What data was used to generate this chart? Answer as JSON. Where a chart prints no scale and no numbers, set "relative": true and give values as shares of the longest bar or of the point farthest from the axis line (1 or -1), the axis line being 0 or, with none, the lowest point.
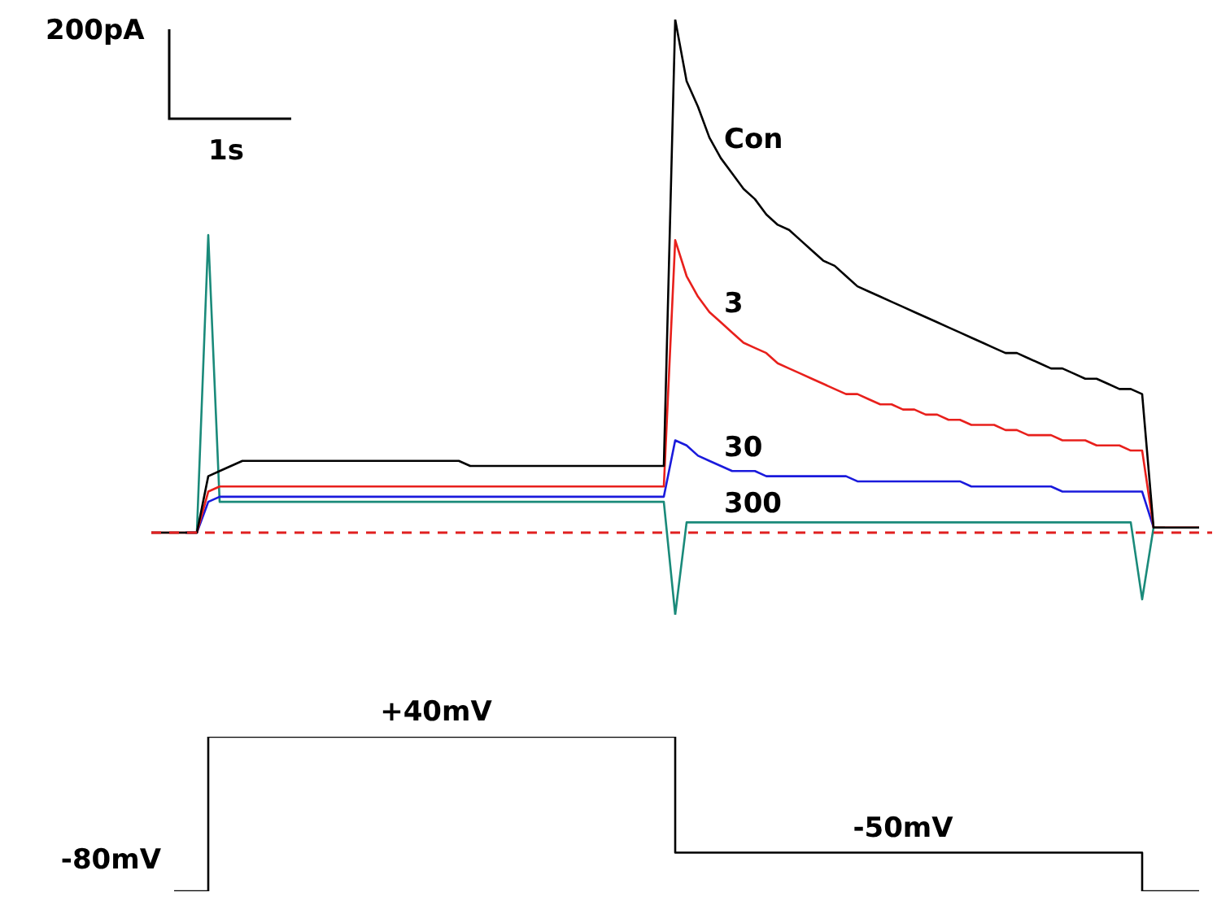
{
  "chart_data": [
    {
      "type": "line",
      "relative": true,
      "annotations": [
        "200pA",
        "1s"
      ],
      "categories": [
        null,
        null,
        null,
        null,
        null,
        null,
        null,
        null,
        null,
        null,
        null,
        null,
        null,
        null,
        null,
        null,
        null,
        null,
        null,
        null,
        null,
        null,
        null,
        null,
        null,
        null,
        null,
        null,
        null,
        null,
        null,
        null,
        null,
        null,
        null,
        null,
        null,
        null,
        null,
        null,
        null,
        null,
        null,
        null,
        null,
        null,
        null,
        null,
        null,
        null,
        null,
        null,
        null,
        null,
        null,
        null,
        null,
        null,
        null,
        null,
        null,
        null,
        null,
        null,
        null,
        null,
        null,
        null,
        null,
        null,
        null,
        null,
        null,
        null,
        null,
        null,
        null,
        null,
        null,
        null,
        null,
        null,
        null,
        null,
        null,
        null,
        null,
        null,
        null,
        null,
        null,
        null,
        null
      ],
      "series": [
        {
          "name": "Con",
          "color": "#000000",
          "values": [
            0,
            0,
            0,
            0,
            0,
            0.11,
            0.12,
            0.13,
            0.14,
            0.14,
            0.14,
            0.14,
            0.14,
            0.14,
            0.14,
            0.14,
            0.14,
            0.14,
            0.14,
            0.14,
            0.14,
            0.14,
            0.14,
            0.14,
            0.14,
            0.14,
            0.14,
            0.14,
            0.13,
            0.13,
            0.13,
            0.13,
            0.13,
            0.13,
            0.13,
            0.13,
            0.13,
            0.13,
            0.13,
            0.13,
            0.13,
            0.13,
            0.13,
            0.13,
            0.13,
            0.13,
            1,
            0.88,
            0.83,
            0.77,
            0.73,
            0.7,
            0.67,
            0.65,
            0.62,
            0.6,
            0.59,
            0.57,
            0.55,
            0.53,
            0.52,
            0.5,
            0.48,
            0.47,
            0.46,
            0.45,
            0.44,
            0.43,
            0.42,
            0.41,
            0.4,
            0.39,
            0.38,
            0.37,
            0.36,
            0.35,
            0.35,
            0.34,
            0.33,
            0.32,
            0.32,
            0.31,
            0.3,
            0.3,
            0.29,
            0.28,
            0.28,
            0.27,
            0.01,
            0.01,
            0.01,
            0.01,
            0.01
          ]
        },
        {
          "name": "3",
          "color": "#e8201c",
          "values": [
            0,
            0,
            0,
            0,
            0,
            0.08,
            0.09,
            0.09,
            0.09,
            0.09,
            0.09,
            0.09,
            0.09,
            0.09,
            0.09,
            0.09,
            0.09,
            0.09,
            0.09,
            0.09,
            0.09,
            0.09,
            0.09,
            0.09,
            0.09,
            0.09,
            0.09,
            0.09,
            0.09,
            0.09,
            0.09,
            0.09,
            0.09,
            0.09,
            0.09,
            0.09,
            0.09,
            0.09,
            0.09,
            0.09,
            0.09,
            0.09,
            0.09,
            0.09,
            0.09,
            0.09,
            0.57,
            0.5,
            0.46,
            0.43,
            0.41,
            0.39,
            0.37,
            0.36,
            0.35,
            0.33,
            0.32,
            0.31,
            0.3,
            0.29,
            0.28,
            0.27,
            0.27,
            0.26,
            0.25,
            0.25,
            0.24,
            0.24,
            0.23,
            0.23,
            0.22,
            0.22,
            0.21,
            0.21,
            0.21,
            0.2,
            0.2,
            0.19,
            0.19,
            0.19,
            0.18,
            0.18,
            0.18,
            0.17,
            0.17,
            0.17,
            0.16,
            0.16,
            0.01,
            0.01,
            0.01,
            0.01,
            0.01
          ]
        },
        {
          "name": "30",
          "color": "#1a1adc",
          "values": [
            null,
            null,
            null,
            0,
            0,
            0.06,
            0.07,
            0.07,
            0.07,
            0.07,
            0.07,
            0.07,
            0.07,
            0.07,
            0.07,
            0.07,
            0.07,
            0.07,
            0.07,
            0.07,
            0.07,
            0.07,
            0.07,
            0.07,
            0.07,
            0.07,
            0.07,
            0.07,
            0.07,
            0.07,
            0.07,
            0.07,
            0.07,
            0.07,
            0.07,
            0.07,
            0.07,
            0.07,
            0.07,
            0.07,
            0.07,
            0.07,
            0.07,
            0.07,
            0.07,
            0.07,
            0.18,
            0.17,
            0.15,
            0.14,
            0.13,
            0.12,
            0.12,
            0.12,
            0.11,
            0.11,
            0.11,
            0.11,
            0.11,
            0.11,
            0.11,
            0.11,
            0.1,
            0.1,
            0.1,
            0.1,
            0.1,
            0.1,
            0.1,
            0.1,
            0.1,
            0.1,
            0.09,
            0.09,
            0.09,
            0.09,
            0.09,
            0.09,
            0.09,
            0.09,
            0.08,
            0.08,
            0.08,
            0.08,
            0.08,
            0.08,
            0.08,
            0.08,
            0.01,
            null,
            null,
            null,
            null
          ]
        },
        {
          "name": "300",
          "color": "#1a8a7a",
          "values": [
            null,
            null,
            null,
            0,
            0,
            0.58,
            0.06,
            0.06,
            0.06,
            0.06,
            0.06,
            0.06,
            0.06,
            0.06,
            0.06,
            0.06,
            0.06,
            0.06,
            0.06,
            0.06,
            0.06,
            0.06,
            0.06,
            0.06,
            0.06,
            0.06,
            0.06,
            0.06,
            0.06,
            0.06,
            0.06,
            0.06,
            0.06,
            0.06,
            0.06,
            0.06,
            0.06,
            0.06,
            0.06,
            0.06,
            0.06,
            0.06,
            0.06,
            0.06,
            0.06,
            0.06,
            -0.16,
            0.02,
            0.02,
            0.02,
            0.02,
            0.02,
            0.02,
            0.02,
            0.02,
            0.02,
            0.02,
            0.02,
            0.02,
            0.02,
            0.02,
            0.02,
            0.02,
            0.02,
            0.02,
            0.02,
            0.02,
            0.02,
            0.02,
            0.02,
            0.02,
            0.02,
            0.02,
            0.02,
            0.02,
            0.02,
            0.02,
            0.02,
            0.02,
            0.02,
            0.02,
            0.02,
            0.02,
            0.02,
            0.02,
            0.02,
            0.02,
            -0.13,
            0.01,
            0.01,
            null,
            null,
            null
          ]
        }
      ],
      "ref_lines": [
        {
          "axis": "y",
          "value": 0,
          "color": "#e02020",
          "line_style": "dashed"
        }
      ]
    },
    {
      "type": "step",
      "color": "#000000",
      "categories": [
        null,
        null,
        null,
        null,
        null,
        null,
        null,
        null,
        null,
        null,
        null,
        null,
        null,
        null,
        null,
        null,
        null,
        null,
        null,
        null,
        null,
        null,
        null,
        null,
        null,
        null,
        null,
        null,
        null,
        null,
        null,
        null,
        null,
        null,
        null,
        null,
        null,
        null,
        null,
        null,
        null,
        null,
        null,
        null,
        null,
        null,
        null,
        null,
        null,
        null,
        null,
        null,
        null,
        null,
        null,
        null,
        null,
        null,
        null,
        null,
        null,
        null,
        null,
        null,
        null,
        null,
        null,
        null,
        null,
        null,
        null,
        null,
        null,
        null,
        null,
        null,
        null,
        null,
        null,
        null,
        null,
        null,
        null,
        null,
        null,
        null,
        null,
        null,
        null,
        null,
        null,
        null,
        null
      ],
      "values": [
        null,
        null,
        -80,
        -80,
        -80,
        40,
        40,
        40,
        40,
        40,
        40,
        40,
        40,
        40,
        40,
        40,
        40,
        40,
        40,
        40,
        40,
        40,
        40,
        40,
        40,
        40,
        40,
        40,
        40,
        40,
        40,
        40,
        40,
        40,
        40,
        40,
        40,
        40,
        40,
        40,
        40,
        40,
        40,
        40,
        40,
        40,
        -50,
        -50,
        -50,
        -50,
        -50,
        -50,
        -50,
        -50,
        -50,
        -50,
        -50,
        -50,
        -50,
        -50,
        -50,
        -50,
        -50,
        -50,
        -50,
        -50,
        -50,
        -50,
        -50,
        -50,
        -50,
        -50,
        -50,
        -50,
        -50,
        -50,
        -50,
        -50,
        -50,
        -50,
        -50,
        -50,
        -50,
        -50,
        -50,
        -50,
        -50,
        -80,
        -80,
        -80,
        -80,
        -80,
        -80
      ],
      "value_labels": [
        null,
        null,
        "-80mV",
        null,
        null,
        null,
        null,
        null,
        null,
        null,
        null,
        null,
        null,
        null,
        null,
        null,
        null,
        null,
        null,
        null,
        null,
        null,
        null,
        null,
        null,
        "+40mV",
        null,
        null,
        null,
        null,
        null,
        null,
        null,
        null,
        null,
        null,
        null,
        null,
        null,
        null,
        null,
        null,
        null,
        null,
        null,
        null,
        null,
        null,
        null,
        null,
        null,
        null,
        null,
        null,
        null,
        null,
        null,
        null,
        null,
        null,
        null,
        null,
        null,
        null,
        null,
        null,
        "-50mV",
        null,
        null,
        null,
        null,
        null,
        null,
        null,
        null,
        null,
        null,
        null,
        null,
        null,
        null,
        null,
        null,
        null,
        null,
        null,
        null,
        null,
        null,
        null,
        null,
        null,
        null
      ]
    }
  ]
}
